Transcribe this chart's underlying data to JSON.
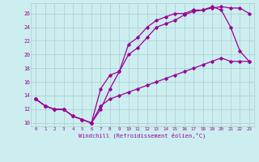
{
  "xlabel": "Windchill (Refroidissement éolien,°C)",
  "bg_color": "#cceef0",
  "line_color": "#990099",
  "grid_color": "#aacccc",
  "xlim": [
    -0.5,
    23.5
  ],
  "ylim": [
    9.5,
    27.5
  ],
  "yticks": [
    10,
    12,
    14,
    16,
    18,
    20,
    22,
    24,
    26
  ],
  "xticks": [
    0,
    1,
    2,
    3,
    4,
    5,
    6,
    7,
    8,
    9,
    10,
    11,
    12,
    13,
    14,
    15,
    16,
    17,
    18,
    19,
    20,
    21,
    22,
    23
  ],
  "line1_x": [
    0,
    1,
    2,
    3,
    4,
    5,
    6,
    7,
    8,
    9,
    10,
    11,
    12,
    13,
    14,
    15,
    16,
    17,
    18,
    19,
    20,
    21,
    22,
    23
  ],
  "line1_y": [
    13.5,
    12.5,
    12.0,
    12.0,
    11.0,
    10.5,
    10.0,
    12.0,
    15.0,
    17.5,
    20.0,
    21.0,
    22.5,
    24.0,
    24.5,
    25.0,
    25.8,
    26.3,
    26.5,
    26.8,
    27.0,
    26.8,
    26.8,
    26.0
  ],
  "line2_x": [
    0,
    1,
    2,
    3,
    4,
    5,
    6,
    7,
    8,
    9,
    10,
    11,
    12,
    13,
    14,
    15,
    16,
    17,
    18,
    19,
    20,
    21,
    22,
    23
  ],
  "line2_y": [
    13.5,
    12.5,
    12.0,
    12.0,
    11.0,
    10.5,
    10.0,
    15.0,
    17.0,
    17.5,
    21.5,
    22.5,
    24.0,
    25.0,
    25.5,
    26.0,
    26.0,
    26.5,
    26.5,
    27.0,
    26.5,
    24.0,
    20.5,
    19.0
  ],
  "line3_x": [
    0,
    1,
    2,
    3,
    4,
    5,
    6,
    7,
    8,
    9,
    10,
    11,
    12,
    13,
    14,
    15,
    16,
    17,
    18,
    19,
    20,
    21,
    22,
    23
  ],
  "line3_y": [
    13.5,
    12.5,
    12.0,
    12.0,
    11.0,
    10.5,
    10.0,
    12.5,
    13.5,
    14.0,
    14.5,
    15.0,
    15.5,
    16.0,
    16.5,
    17.0,
    17.5,
    18.0,
    18.5,
    19.0,
    19.5,
    19.0,
    19.0,
    19.0
  ]
}
